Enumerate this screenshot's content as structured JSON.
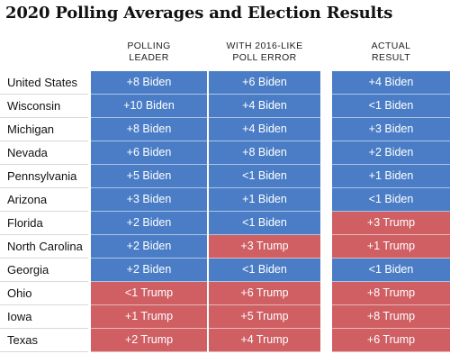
{
  "title": "2020 Polling Averages and Election Results",
  "columns": [
    {
      "line1": "POLLING",
      "line2": "LEADER"
    },
    {
      "line1": "WITH 2016-LIKE",
      "line2": "POLL ERROR"
    },
    {
      "line1": "ACTUAL",
      "line2": "RESULT"
    }
  ],
  "colors": {
    "biden": "#4a7dc6",
    "trump": "#cf5f63"
  },
  "rows": [
    {
      "state": "United States",
      "cells": [
        {
          "text": "+8 Biden",
          "party": "biden"
        },
        {
          "text": "+6 Biden",
          "party": "biden"
        },
        {
          "text": "+4 Biden",
          "party": "biden"
        }
      ]
    },
    {
      "state": "Wisconsin",
      "cells": [
        {
          "text": "+10 Biden",
          "party": "biden"
        },
        {
          "text": "+4 Biden",
          "party": "biden"
        },
        {
          "text": "<1 Biden",
          "party": "biden"
        }
      ]
    },
    {
      "state": "Michigan",
      "cells": [
        {
          "text": "+8 Biden",
          "party": "biden"
        },
        {
          "text": "+4 Biden",
          "party": "biden"
        },
        {
          "text": "+3 Biden",
          "party": "biden"
        }
      ]
    },
    {
      "state": "Nevada",
      "cells": [
        {
          "text": "+6 Biden",
          "party": "biden"
        },
        {
          "text": "+8 Biden",
          "party": "biden"
        },
        {
          "text": "+2 Biden",
          "party": "biden"
        }
      ]
    },
    {
      "state": "Pennsylvania",
      "cells": [
        {
          "text": "+5 Biden",
          "party": "biden"
        },
        {
          "text": "<1 Biden",
          "party": "biden"
        },
        {
          "text": "+1 Biden",
          "party": "biden"
        }
      ]
    },
    {
      "state": "Arizona",
      "cells": [
        {
          "text": "+3 Biden",
          "party": "biden"
        },
        {
          "text": "+1 Biden",
          "party": "biden"
        },
        {
          "text": "<1 Biden",
          "party": "biden"
        }
      ]
    },
    {
      "state": "Florida",
      "cells": [
        {
          "text": "+2 Biden",
          "party": "biden"
        },
        {
          "text": "<1 Biden",
          "party": "biden"
        },
        {
          "text": "+3 Trump",
          "party": "trump"
        }
      ]
    },
    {
      "state": "North Carolina",
      "cells": [
        {
          "text": "+2 Biden",
          "party": "biden"
        },
        {
          "text": "+3 Trump",
          "party": "trump"
        },
        {
          "text": "+1 Trump",
          "party": "trump"
        }
      ]
    },
    {
      "state": "Georgia",
      "cells": [
        {
          "text": "+2 Biden",
          "party": "biden"
        },
        {
          "text": "<1 Biden",
          "party": "biden"
        },
        {
          "text": "<1 Biden",
          "party": "biden"
        }
      ]
    },
    {
      "state": "Ohio",
      "cells": [
        {
          "text": "<1 Trump",
          "party": "trump"
        },
        {
          "text": "+6 Trump",
          "party": "trump"
        },
        {
          "text": "+8 Trump",
          "party": "trump"
        }
      ]
    },
    {
      "state": "Iowa",
      "cells": [
        {
          "text": "+1 Trump",
          "party": "trump"
        },
        {
          "text": "+5 Trump",
          "party": "trump"
        },
        {
          "text": "+8 Trump",
          "party": "trump"
        }
      ]
    },
    {
      "state": "Texas",
      "cells": [
        {
          "text": "+2 Trump",
          "party": "trump"
        },
        {
          "text": "+4 Trump",
          "party": "trump"
        },
        {
          "text": "+6 Trump",
          "party": "trump"
        }
      ]
    }
  ]
}
